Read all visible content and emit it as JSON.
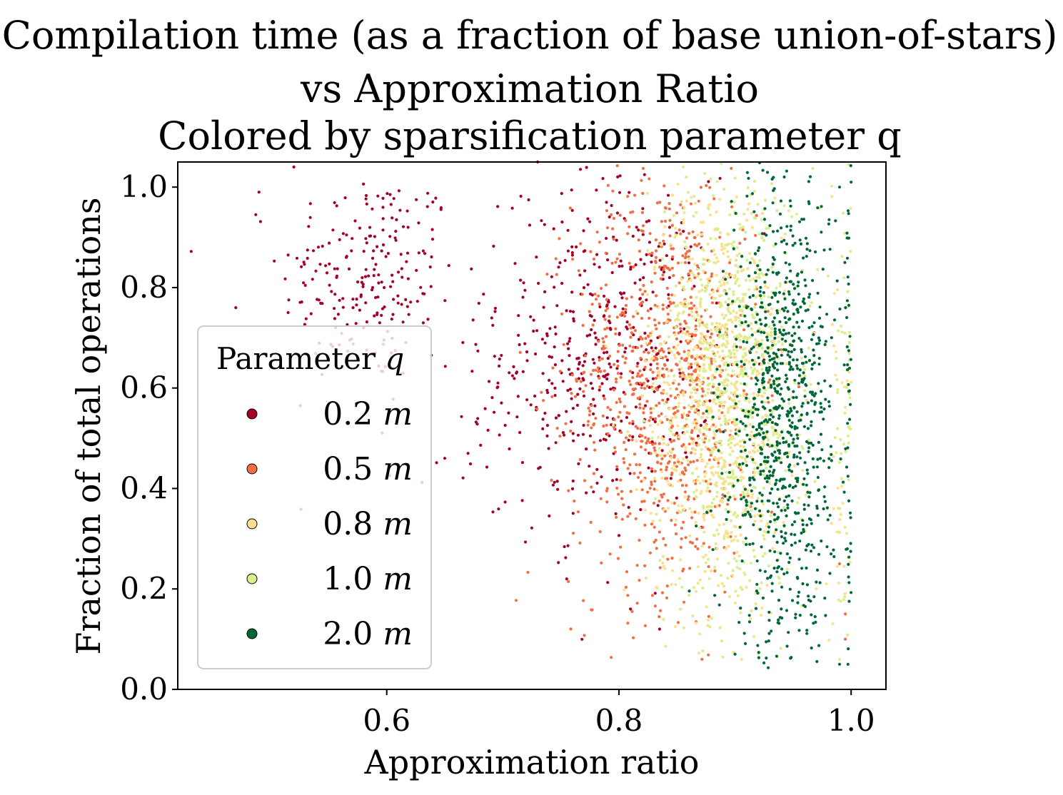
{
  "chart_data": {
    "type": "scatter",
    "title_lines": [
      "Compilation time (as a fraction of base union-of-stars)",
      "vs Approximation Ratio",
      "Colored by sparsification parameter q"
    ],
    "xlabel": "Approximation ratio",
    "ylabel": "Fraction of total operations",
    "xlim": [
      0.42,
      1.03
    ],
    "ylim": [
      0.0,
      1.05
    ],
    "xticks": [
      0.6,
      0.8,
      1.0
    ],
    "xtick_labels": [
      "0.6",
      "0.8",
      "1.0"
    ],
    "yticks": [
      0.0,
      0.2,
      0.4,
      0.6,
      0.8,
      1.0
    ],
    "ytick_labels": [
      "0.0",
      "0.2",
      "0.4",
      "0.6",
      "0.8",
      "1.0"
    ],
    "grid": false,
    "legend": {
      "title": "Parameter",
      "title_var": "q",
      "placement": "lower-left",
      "unit": "m"
    },
    "series": [
      {
        "name": "0.2",
        "color": "#a50026",
        "clusters": [
          {
            "cx": 0.585,
            "cy": 0.82,
            "sx": 0.038,
            "sy": 0.11,
            "n": 220
          },
          {
            "cx": 0.79,
            "cy": 0.68,
            "sx": 0.045,
            "sy": 0.17,
            "n": 430
          },
          {
            "cx": 0.7,
            "cy": 0.55,
            "sx": 0.05,
            "sy": 0.15,
            "n": 60
          }
        ],
        "points": [
          [
            0.755,
            0.22
          ],
          [
            0.81,
            0.16
          ],
          [
            0.835,
            0.12
          ],
          [
            0.52,
            1.04
          ],
          [
            0.73,
            1.05
          ],
          [
            0.49,
            0.99
          ],
          [
            0.47,
            0.76
          ],
          [
            0.65,
            0.46
          ],
          [
            0.67,
            0.47
          ]
        ]
      },
      {
        "name": "0.5",
        "color": "#f46d43",
        "clusters": [
          {
            "cx": 0.84,
            "cy": 0.62,
            "sx": 0.04,
            "sy": 0.21,
            "n": 900
          }
        ],
        "points": [
          [
            0.79,
            0.4
          ],
          [
            0.995,
            0.15
          ],
          [
            0.995,
            0.1
          ],
          [
            0.99,
            0.25
          ]
        ]
      },
      {
        "name": "0.8",
        "color": "#fee08b",
        "clusters": [
          {
            "cx": 0.885,
            "cy": 0.58,
            "sx": 0.03,
            "sy": 0.22,
            "n": 700
          },
          {
            "cx": 0.99,
            "cy": 0.5,
            "sx": 0.006,
            "sy": 0.25,
            "n": 40
          }
        ],
        "points": [
          [
            0.97,
            0.2
          ],
          [
            0.99,
            0.06
          ]
        ]
      },
      {
        "name": "1.0",
        "color": "#d9ef8b",
        "clusters": [
          {
            "cx": 0.9,
            "cy": 0.6,
            "sx": 0.028,
            "sy": 0.22,
            "n": 700
          },
          {
            "cx": 0.995,
            "cy": 0.55,
            "sx": 0.005,
            "sy": 0.22,
            "n": 50
          }
        ],
        "points": []
      },
      {
        "name": "2.0",
        "color": "#006837",
        "clusters": [
          {
            "cx": 0.94,
            "cy": 0.55,
            "sx": 0.022,
            "sy": 0.24,
            "n": 900
          },
          {
            "cx": 1.0,
            "cy": 0.55,
            "sx": 0.003,
            "sy": 0.23,
            "n": 45
          }
        ],
        "points": [
          [
            0.99,
            0.05
          ],
          [
            0.9,
            0.07
          ],
          [
            1.0,
            1.01
          ],
          [
            0.99,
            1.0
          ]
        ]
      }
    ]
  }
}
